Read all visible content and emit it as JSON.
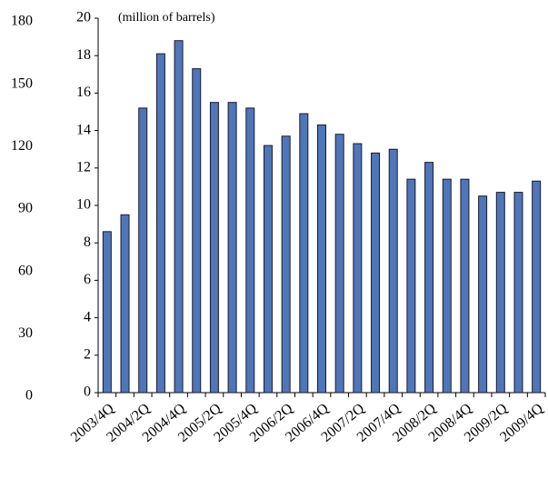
{
  "chart_data": {
    "type": "bar",
    "subtitle": "(million of barrels)",
    "categories": [
      "2003/4Q",
      null,
      "2004/2Q",
      null,
      "2004/4Q",
      null,
      "2005/2Q",
      null,
      "2005/4Q",
      null,
      "2006/2Q",
      null,
      "2006/4Q",
      null,
      "2007/2Q",
      null,
      "2007/4Q",
      null,
      "2008/2Q",
      null,
      "2008/4Q",
      null,
      "2009/2Q",
      null,
      "2009/4Q"
    ],
    "values": [
      8.6,
      9.5,
      15.2,
      18.1,
      18.8,
      17.3,
      15.5,
      15.5,
      15.2,
      13.2,
      13.7,
      14.9,
      14.3,
      13.8,
      13.3,
      12.8,
      13.0,
      11.4,
      12.3,
      11.4,
      11.4,
      10.5,
      10.7,
      10.7,
      11.3
    ],
    "color": "#4f76b8",
    "ylim": [
      0,
      20
    ],
    "yticks": [
      0,
      2,
      4,
      6,
      8,
      10,
      12,
      14,
      16,
      18,
      20
    ],
    "y2lim": [
      0,
      180
    ],
    "y2ticks": [
      0,
      30,
      60,
      90,
      120,
      150,
      180
    ]
  }
}
